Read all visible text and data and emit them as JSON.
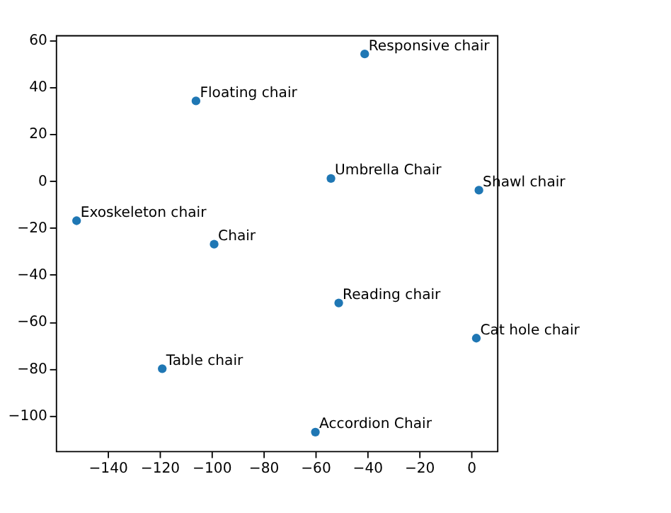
{
  "chart_data": {
    "type": "scatter",
    "x": [
      -41,
      -106,
      -54,
      3,
      -152,
      -99,
      -51,
      2,
      -119,
      -60
    ],
    "series": [
      {
        "color": "#1f77b4",
        "values": [
          54,
          34,
          1,
          -4,
          -17,
          -27,
          -52,
          -67,
          -80,
          -107
        ]
      }
    ],
    "annotations": [
      {
        "text": "Responsive chair",
        "x": -41,
        "y": 54
      },
      {
        "text": "Floating chair",
        "x": -106,
        "y": 34
      },
      {
        "text": "Umbrella Chair",
        "x": -54,
        "y": 1
      },
      {
        "text": "Shawl chair",
        "x": 3,
        "y": -4
      },
      {
        "text": "Exoskeleton chair",
        "x": -152,
        "y": -17
      },
      {
        "text": "Chair",
        "x": -99,
        "y": -27
      },
      {
        "text": "Reading chair",
        "x": -51,
        "y": -52
      },
      {
        "text": "Cat hole chair",
        "x": 2,
        "y": -67
      },
      {
        "text": "Table chair",
        "x": -119,
        "y": -80
      },
      {
        "text": "Accordion Chair",
        "x": -60,
        "y": -107
      }
    ],
    "xlim": [
      -160,
      10
    ],
    "ylim": [
      -115,
      62
    ],
    "xticks": [
      -140,
      -120,
      -100,
      -80,
      -60,
      -40,
      -20,
      0
    ],
    "yticks": [
      -100,
      -80,
      -60,
      -40,
      -20,
      0,
      20,
      40,
      60
    ],
    "grid": false,
    "marker": "circle"
  }
}
